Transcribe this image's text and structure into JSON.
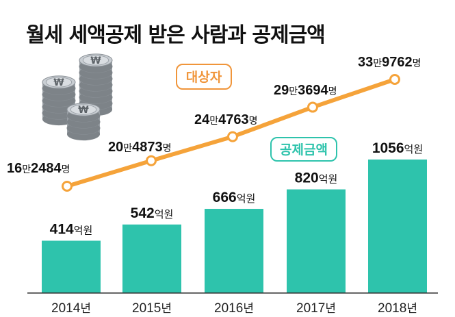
{
  "title": "월세 세액공제 받은 사람과 공제금액",
  "colors": {
    "bar": "#2ec3ac",
    "line": "#f5a33a",
    "legend_line": "#f0953a",
    "legend_bar": "#2ec3ac",
    "axis": "#333333"
  },
  "chart_data": {
    "type": "bar+line",
    "categories": [
      "2014년",
      "2015년",
      "2016년",
      "2017년",
      "2018년"
    ],
    "series": [
      {
        "name": "공제금액",
        "type": "bar",
        "values": [
          414,
          542,
          666,
          820,
          1056
        ],
        "labels": [
          {
            "num": "414",
            "unit": "억원"
          },
          {
            "num": "542",
            "unit": "억원"
          },
          {
            "num": "666",
            "unit": "억원"
          },
          {
            "num": "820",
            "unit": "억원"
          },
          {
            "num": "1056",
            "unit": "억원"
          }
        ]
      },
      {
        "name": "대상자",
        "type": "line",
        "values": [
          162484,
          204873,
          244763,
          293694,
          339762
        ],
        "labels": [
          {
            "a": "16",
            "b": "만",
            "c": "2484",
            "d": "명"
          },
          {
            "a": "20",
            "b": "만",
            "c": "4873",
            "d": "명"
          },
          {
            "a": "24",
            "b": "만",
            "c": "4763",
            "d": "명"
          },
          {
            "a": "29",
            "b": "만",
            "c": "3694",
            "d": "명"
          },
          {
            "a": "33",
            "b": "만",
            "c": "9762",
            "d": "명"
          }
        ]
      }
    ],
    "legend": [
      "대상자",
      "공제금액"
    ],
    "illustration": "coin-stacks-icon"
  }
}
